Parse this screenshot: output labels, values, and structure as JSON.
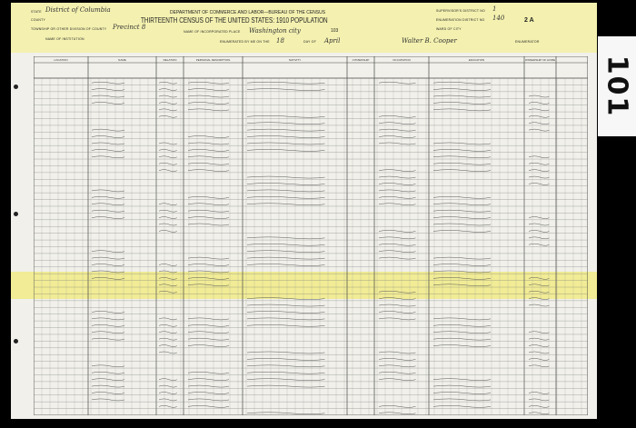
{
  "header": {
    "department": "DEPARTMENT OF COMMERCE AND LABOR—BUREAU OF THE CENSUS",
    "title": "THIRTEENTH CENSUS OF THE UNITED STATES: 1910  POPULATION",
    "state_label": "STATE",
    "state_value": "District of Columbia",
    "county_label": "COUNTY",
    "township_label": "TOWNSHIP OR OTHER DIVISION OF COUNTY",
    "township_value": "Precinct 8",
    "institution_label": "NAME OF INSTITUTION",
    "place_label": "NAME OF INCORPORATED PLACE",
    "place_value": "Washington city",
    "enumerated_label": "ENUMERATED BY ME ON THE",
    "enumerated_day": "18",
    "day_of_label": "DAY OF",
    "month_value": "April",
    "enumerator_value": "Walter B. Cooper",
    "enumerator_label": "ENUMERATOR",
    "supervisor_label": "SUPERVISOR'S DISTRICT NO",
    "supervisor_value": "1",
    "enumeration_label": "ENUMERATION DISTRICT NO",
    "enumeration_value": "140",
    "ward_label": "WARD OF CITY",
    "page_number": "103",
    "sheet": "2 A"
  },
  "columns": [
    "LOCATION",
    "NAME",
    "RELATION",
    "PERSONAL DESCRIPTION",
    "NATIVITY",
    "CITIZENSHIP",
    "OCCUPATION",
    "EDUCATION",
    "OWNERSHIP OF HOME"
  ],
  "stamp": "101",
  "highlight_color": "#f0eb78"
}
